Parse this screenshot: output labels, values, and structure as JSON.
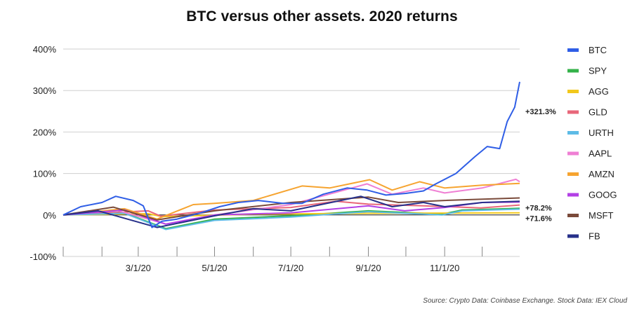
{
  "chart_data": {
    "type": "line",
    "title": "BTC versus other assets. 2020 returns",
    "xlabel": "",
    "ylabel": "",
    "ylim": [
      -100,
      400
    ],
    "yticks": [
      400,
      300,
      200,
      100,
      0,
      -100
    ],
    "ytick_labels": [
      "400%",
      "300%",
      "200%",
      "100%",
      "0%",
      "-100%"
    ],
    "x_range": [
      "1/1/20",
      "12/31/20"
    ],
    "xticks": [
      "3/1/20",
      "5/1/20",
      "7/1/20",
      "9/1/20",
      "11/1/20"
    ],
    "grid": "horizontal",
    "legend_position": "right",
    "series": [
      {
        "name": "BTC",
        "color": "#2f5ee6",
        "points": [
          [
            "1/1/20",
            0
          ],
          [
            "1/15/20",
            20
          ],
          [
            "2/1/20",
            30
          ],
          [
            "2/12/20",
            45
          ],
          [
            "2/26/20",
            35
          ],
          [
            "3/5/20",
            22
          ],
          [
            "3/12/20",
            -30
          ],
          [
            "3/20/20",
            -15
          ],
          [
            "4/1/20",
            -10
          ],
          [
            "4/20/20",
            5
          ],
          [
            "5/5/20",
            20
          ],
          [
            "5/20/20",
            30
          ],
          [
            "6/5/20",
            35
          ],
          [
            "6/25/20",
            28
          ],
          [
            "7/10/20",
            28
          ],
          [
            "7/27/20",
            50
          ],
          [
            "8/15/20",
            65
          ],
          [
            "8/31/20",
            60
          ],
          [
            "9/15/20",
            48
          ],
          [
            "10/1/20",
            52
          ],
          [
            "10/15/20",
            58
          ],
          [
            "10/25/20",
            75
          ],
          [
            "11/10/20",
            100
          ],
          [
            "11/25/20",
            140
          ],
          [
            "12/5/20",
            165
          ],
          [
            "12/15/20",
            160
          ],
          [
            "12/21/20",
            225
          ],
          [
            "12/27/20",
            260
          ],
          [
            "12/31/20",
            321
          ]
        ]
      },
      {
        "name": "SPY",
        "color": "#34b24a",
        "points": [
          [
            "1/1/20",
            0
          ],
          [
            "2/19/20",
            5
          ],
          [
            "3/23/20",
            -33
          ],
          [
            "5/1/20",
            -10
          ],
          [
            "7/1/20",
            -2
          ],
          [
            "9/1/20",
            10
          ],
          [
            "10/30/20",
            2
          ],
          [
            "11/15/20",
            12
          ],
          [
            "12/31/20",
            16
          ]
        ]
      },
      {
        "name": "AGG",
        "color": "#f2c81c",
        "points": [
          [
            "1/1/20",
            0
          ],
          [
            "3/9/20",
            3
          ],
          [
            "3/20/20",
            -4
          ],
          [
            "6/1/20",
            2
          ],
          [
            "9/1/20",
            4
          ],
          [
            "12/31/20",
            5
          ]
        ]
      },
      {
        "name": "GLD",
        "color": "#e8677a",
        "points": [
          [
            "1/1/20",
            0
          ],
          [
            "3/9/20",
            10
          ],
          [
            "3/19/20",
            -3
          ],
          [
            "5/1/20",
            12
          ],
          [
            "7/1/20",
            18
          ],
          [
            "8/6/20",
            33
          ],
          [
            "9/1/20",
            26
          ],
          [
            "10/15/20",
            22
          ],
          [
            "11/30/20",
            17
          ],
          [
            "12/31/20",
            24
          ]
        ]
      },
      {
        "name": "URTH",
        "color": "#5dbbe6",
        "points": [
          [
            "1/1/20",
            0
          ],
          [
            "2/19/20",
            4
          ],
          [
            "3/23/20",
            -35
          ],
          [
            "5/1/20",
            -13
          ],
          [
            "7/1/20",
            -5
          ],
          [
            "9/1/20",
            8
          ],
          [
            "10/30/20",
            0
          ],
          [
            "11/15/20",
            10
          ],
          [
            "12/31/20",
            14
          ]
        ]
      },
      {
        "name": "AAPL",
        "color": "#ef7fd4",
        "points": [
          [
            "1/1/20",
            0
          ],
          [
            "2/12/20",
            12
          ],
          [
            "3/23/20",
            -22
          ],
          [
            "5/1/20",
            0
          ],
          [
            "7/1/20",
            25
          ],
          [
            "8/31/20",
            75
          ],
          [
            "9/20/20",
            50
          ],
          [
            "10/15/20",
            65
          ],
          [
            "11/1/20",
            53
          ],
          [
            "12/1/20",
            65
          ],
          [
            "12/28/20",
            86
          ],
          [
            "12/31/20",
            80
          ]
        ]
      },
      {
        "name": "AMZN",
        "color": "#f6a430",
        "points": [
          [
            "1/1/20",
            0
          ],
          [
            "2/19/20",
            15
          ],
          [
            "3/16/20",
            -10
          ],
          [
            "4/14/20",
            25
          ],
          [
            "5/1/20",
            28
          ],
          [
            "6/1/20",
            35
          ],
          [
            "7/10/20",
            70
          ],
          [
            "8/1/20",
            65
          ],
          [
            "9/2/20",
            85
          ],
          [
            "9/20/20",
            60
          ],
          [
            "10/12/20",
            80
          ],
          [
            "11/1/20",
            65
          ],
          [
            "12/1/20",
            72
          ],
          [
            "12/31/20",
            76
          ]
        ]
      },
      {
        "name": "GOOG",
        "color": "#b340e6",
        "points": [
          [
            "1/1/20",
            0
          ],
          [
            "2/19/20",
            12
          ],
          [
            "3/23/20",
            -22
          ],
          [
            "5/1/20",
            0
          ],
          [
            "7/1/20",
            5
          ],
          [
            "9/1/20",
            22
          ],
          [
            "9/30/20",
            10
          ],
          [
            "11/1/20",
            18
          ],
          [
            "12/1/20",
            30
          ],
          [
            "12/31/20",
            31
          ]
        ]
      },
      {
        "name": "MSFT",
        "color": "#7a4a3a",
        "points": [
          [
            "1/1/20",
            0
          ],
          [
            "2/10/20",
            19
          ],
          [
            "3/16/20",
            -12
          ],
          [
            "5/1/20",
            10
          ],
          [
            "7/1/20",
            30
          ],
          [
            "9/1/20",
            43
          ],
          [
            "9/25/20",
            30
          ],
          [
            "11/1/20",
            35
          ],
          [
            "12/31/20",
            41
          ]
        ]
      },
      {
        "name": "FB",
        "color": "#27308a",
        "points": [
          [
            "1/1/20",
            0
          ],
          [
            "1/29/20",
            10
          ],
          [
            "3/16/20",
            -30
          ],
          [
            "5/1/20",
            -2
          ],
          [
            "6/1/20",
            15
          ],
          [
            "7/1/20",
            10
          ],
          [
            "8/26/20",
            45
          ],
          [
            "9/20/20",
            20
          ],
          [
            "10/15/20",
            30
          ],
          [
            "11/1/20",
            20
          ],
          [
            "12/1/20",
            30
          ],
          [
            "12/31/20",
            33
          ]
        ]
      }
    ],
    "annotations": [
      {
        "text": "+321.3%",
        "y": 250
      },
      {
        "text": "+78.2%",
        "y": 17
      },
      {
        "text": "+71.6%",
        "y": -8
      }
    ],
    "source": "Source: Crypto Data: Coinbase Exchange. Stock Data: IEX Cloud"
  }
}
